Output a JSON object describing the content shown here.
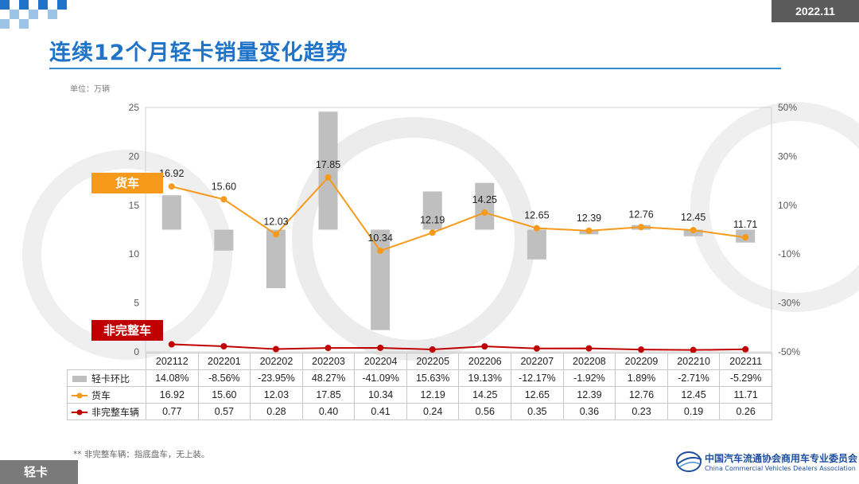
{
  "header": {
    "date": "2022.11"
  },
  "title": "连续12个月轻卡销量变化趋势",
  "unit": "单位：万辆",
  "series_tags": {
    "truck": "货车",
    "chassis": "非完整车"
  },
  "footnote": "** 非完整车辆：指底盘车，无上装。",
  "bottom_tag": "轻卡",
  "logo": {
    "cn": "中国汽车流通协会商用车专业委员会",
    "en": "China Commercial Vehicles Dealers Association"
  },
  "colors": {
    "accent": "#1f73c9",
    "truck": "#f79a1c",
    "chassis": "#c00000",
    "bar": "#bfbfbf"
  },
  "chart_data": {
    "type": "bar+line",
    "categories": [
      "202112",
      "202201",
      "202202",
      "202203",
      "202204",
      "202205",
      "202206",
      "202207",
      "202208",
      "202209",
      "202210",
      "202211"
    ],
    "left_axis": {
      "min": 0,
      "max": 25,
      "step": 5,
      "ticks": [
        "0",
        "5",
        "10",
        "15",
        "20",
        "25"
      ]
    },
    "right_axis": {
      "min": -50,
      "max": 50,
      "step": 20,
      "ticks": [
        "-50%",
        "-30%",
        "-10%",
        "10%",
        "30%",
        "50%"
      ]
    },
    "series": [
      {
        "name": "轻卡环比",
        "type": "bar",
        "axis": "right",
        "values": [
          14.08,
          -8.56,
          -23.95,
          48.27,
          -41.09,
          15.63,
          19.13,
          -12.17,
          -1.92,
          1.89,
          -2.71,
          -5.29
        ],
        "labels": [
          "14.08%",
          "-8.56%",
          "-23.95%",
          "48.27%",
          "-41.09%",
          "15.63%",
          "19.13%",
          "-12.17%",
          "-1.92%",
          "1.89%",
          "-2.71%",
          "-5.29%"
        ]
      },
      {
        "name": "货车",
        "type": "line",
        "axis": "left",
        "values": [
          16.92,
          15.6,
          12.03,
          17.85,
          10.34,
          12.19,
          14.25,
          12.65,
          12.39,
          12.76,
          12.45,
          11.71
        ],
        "labels": [
          "16.92",
          "15.60",
          "12.03",
          "17.85",
          "10.34",
          "12.19",
          "14.25",
          "12.65",
          "12.39",
          "12.76",
          "12.45",
          "11.71"
        ]
      },
      {
        "name": "非完整车辆",
        "type": "line",
        "axis": "left",
        "values": [
          0.77,
          0.57,
          0.28,
          0.4,
          0.41,
          0.24,
          0.56,
          0.35,
          0.36,
          0.23,
          0.19,
          0.26
        ],
        "labels": [
          "0.77",
          "0.57",
          "0.28",
          "0.40",
          "0.41",
          "0.24",
          "0.56",
          "0.35",
          "0.36",
          "0.23",
          "0.19",
          "0.26"
        ]
      }
    ]
  }
}
